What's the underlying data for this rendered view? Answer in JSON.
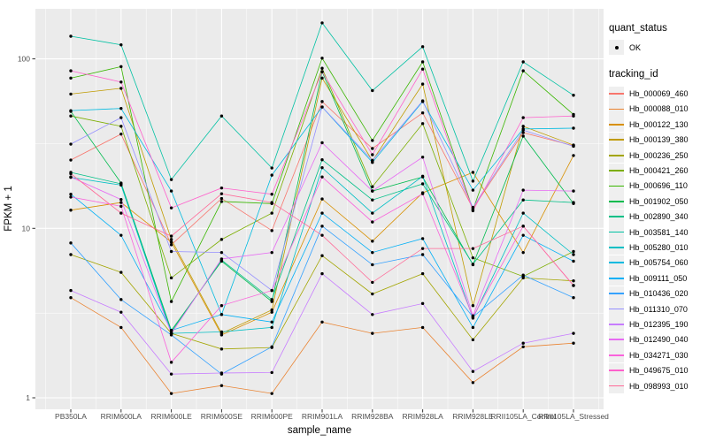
{
  "figure": {
    "y_axis_title": "FPKM + 1",
    "x_axis_title": "sample_name",
    "y_tick_labels": [
      "100",
      "10",
      "1"
    ]
  },
  "legend": {
    "quant_status_title": "quant_status",
    "quant_status_item": {
      "label": "OK",
      "marker": "black-point"
    },
    "tracking_id_title": "tracking_id"
  },
  "colors": {
    "panel_bg": "#EBEBEB",
    "grid_major": "#FFFFFF",
    "grid_minor": "#F7F7F7",
    "tick_mark": "#333333",
    "tick_text": "#4D4D4D",
    "point": "#000000",
    "legend_key_bg": "#EFEFEF"
  },
  "chart_data": {
    "type": "line",
    "title": "",
    "xlabel": "sample_name",
    "ylabel": "FPKM + 1",
    "y_scale": "log10",
    "y_ticks": [
      1,
      10,
      100
    ],
    "y_minor_ticks": [
      3.162,
      31.62
    ],
    "ylim": [
      0.95,
      200
    ],
    "grid": true,
    "legend_position": "right",
    "point_marker": "OK",
    "categories": [
      "PB350LA",
      "RRIM600LA",
      "RRIM600LE",
      "RRIM600SE",
      "RRIM600PE",
      "RRIM901LA",
      "RRIM928BA",
      "RRIM928LA",
      "RRIM928LE",
      "RRII105LA_Control",
      "RRII105LA_Stressed"
    ],
    "series": [
      {
        "name": "Hb_000069_460",
        "color": "#F8766D",
        "values": [
          25.3,
          36,
          8.0,
          15,
          9.7,
          56,
          29.6,
          48,
          13.1,
          36.7,
          30.7
        ]
      },
      {
        "name": "Hb_000088_010",
        "color": "#EA8331",
        "values": [
          3.9,
          2.6,
          1.06,
          1.18,
          1.06,
          2.8,
          2.4,
          2.6,
          1.23,
          2.0,
          2.1
        ]
      },
      {
        "name": "Hb_000122_130",
        "color": "#D89000",
        "values": [
          12.8,
          14.2,
          8.3,
          2.35,
          3.2,
          14.9,
          8.4,
          16.2,
          21.4,
          7.2,
          26.9
        ]
      },
      {
        "name": "Hb_000139_380",
        "color": "#C09B00",
        "values": [
          62,
          67,
          8.6,
          2.4,
          3.3,
          77,
          25,
          71,
          3.5,
          40,
          31
        ]
      },
      {
        "name": "Hb_000236_250",
        "color": "#A3A500",
        "values": [
          7.0,
          5.5,
          2.4,
          1.94,
          1.98,
          6.9,
          4.1,
          5.4,
          2.2,
          5.1,
          4.9
        ]
      },
      {
        "name": "Hb_000421_260",
        "color": "#7CAE00",
        "values": [
          46,
          40,
          5.1,
          8.6,
          12.3,
          88,
          17.6,
          41.5,
          6.7,
          5.2,
          7.3
        ]
      },
      {
        "name": "Hb_000696_110",
        "color": "#39B600",
        "values": [
          77,
          90,
          3.7,
          14.4,
          14,
          101,
          33,
          96,
          12.9,
          85,
          47
        ]
      },
      {
        "name": "Hb_001902_050",
        "color": "#00BB4E",
        "values": [
          49,
          18.5,
          2.5,
          6.4,
          3.7,
          84,
          16.6,
          20.1,
          6.1,
          35,
          14
        ]
      },
      {
        "name": "Hb_002890_340",
        "color": "#00C087",
        "values": [
          21.4,
          18.3,
          2.45,
          6.5,
          3.8,
          25.4,
          14.7,
          18.3,
          6.15,
          14.7,
          14.2
        ]
      },
      {
        "name": "Hb_003581_140",
        "color": "#00C1A3",
        "values": [
          136,
          121,
          19.4,
          46,
          22.7,
          163,
          65,
          118,
          19,
          96,
          61
        ]
      },
      {
        "name": "Hb_005280_010",
        "color": "#00BFC4",
        "values": [
          20,
          18,
          2.4,
          2.45,
          2.6,
          22.8,
          12.3,
          20.3,
          2.95,
          12.3,
          7.0
        ]
      },
      {
        "name": "Hb_005754_060",
        "color": "#00BAE0",
        "values": [
          49.5,
          51,
          16.6,
          3.1,
          20.6,
          52,
          24.5,
          56,
          16.8,
          38.6,
          39
        ]
      },
      {
        "name": "Hb_009111_050",
        "color": "#00B0F6",
        "values": [
          15.9,
          9.1,
          2.5,
          3.1,
          2.8,
          12.3,
          7.2,
          8.7,
          2.6,
          9.1,
          6.4
        ]
      },
      {
        "name": "Hb_010436_020",
        "color": "#35A2FF",
        "values": [
          8.2,
          3.8,
          2.35,
          1.38,
          2.0,
          10.3,
          6.1,
          7.0,
          3.0,
          5.3,
          3.9
        ]
      },
      {
        "name": "Hb_011310_070",
        "color": "#9590FF",
        "values": [
          31.4,
          45,
          7.3,
          7.2,
          4.3,
          52,
          25.2,
          56.5,
          13.3,
          38,
          30.5
        ]
      },
      {
        "name": "Hb_012395_190",
        "color": "#C77CFF",
        "values": [
          4.3,
          3.2,
          1.38,
          1.4,
          1.41,
          5.4,
          3.1,
          3.6,
          1.43,
          2.1,
          2.4
        ]
      },
      {
        "name": "Hb_012490_040",
        "color": "#E76BF3",
        "values": [
          20.1,
          14.8,
          2.4,
          6.6,
          7.2,
          32,
          16.6,
          26.3,
          3.05,
          16.8,
          16.6
        ]
      },
      {
        "name": "Hb_034271_030",
        "color": "#FA62DB",
        "values": [
          15.3,
          13.5,
          1.62,
          3.5,
          4.3,
          20.1,
          10.9,
          16.0,
          3.0,
          10.3,
          4.6
        ]
      },
      {
        "name": "Hb_049675_010",
        "color": "#FF61CC",
        "values": [
          85,
          73,
          13.2,
          17.3,
          15.9,
          84,
          27.2,
          87,
          12.7,
          45,
          46
        ]
      },
      {
        "name": "Hb_098993_010",
        "color": "#FF6A98",
        "values": [
          21,
          12.3,
          9.0,
          16,
          14.2,
          9.1,
          4.8,
          7.6,
          7.6,
          10.3,
          4.6
        ]
      }
    ]
  }
}
